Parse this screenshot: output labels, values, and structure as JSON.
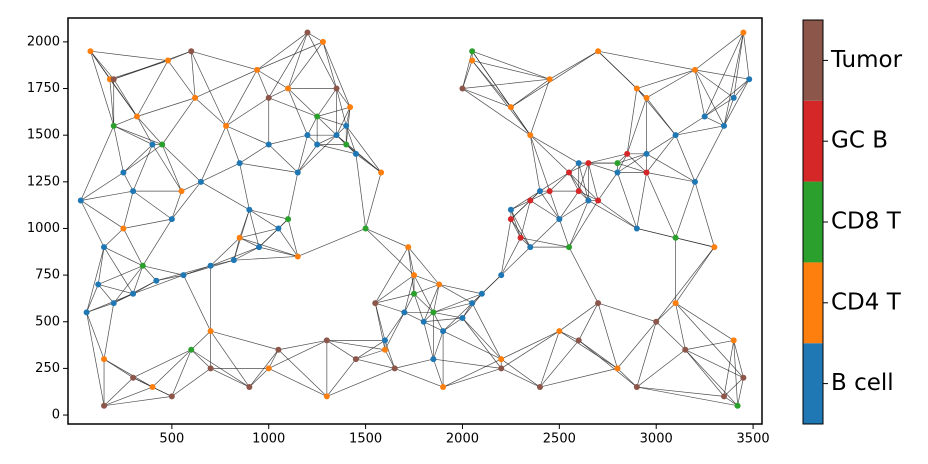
{
  "chart_data": {
    "type": "scatter",
    "xlim": [
      -36,
      3546
    ],
    "ylim": [
      -48,
      2128
    ],
    "xticks": [
      500,
      1000,
      1500,
      2000,
      2500,
      3000,
      3500
    ],
    "yticks": [
      0,
      250,
      500,
      750,
      1000,
      1250,
      1500,
      1750,
      2000
    ],
    "legend": "colorbar-right",
    "series": [
      {
        "name": "B cell",
        "color": "#1f77b4",
        "x": [
          30,
          120,
          200,
          300,
          420,
          560,
          700,
          820,
          950,
          1050,
          1150,
          1250,
          1350,
          1450,
          300,
          500,
          650,
          850,
          1000,
          1200,
          1400,
          60,
          150,
          250,
          400,
          1700,
          1800,
          1900,
          2000,
          2100,
          2200,
          2350,
          2500,
          2650,
          2800,
          2950,
          3100,
          3250,
          3400,
          3480,
          2400,
          2600,
          2900,
          3200,
          3350,
          1850,
          2050,
          2250,
          1600,
          900
        ],
        "values": [
          1150,
          700,
          600,
          650,
          720,
          750,
          800,
          830,
          900,
          1000,
          1300,
          1450,
          1500,
          1400,
          1200,
          1050,
          1250,
          1350,
          1450,
          1500,
          1550,
          550,
          900,
          1300,
          1450,
          550,
          500,
          450,
          520,
          650,
          750,
          900,
          1050,
          1150,
          1300,
          1400,
          1500,
          1600,
          1700,
          1800,
          1200,
          1350,
          1000,
          1250,
          1550,
          300,
          600,
          1100,
          400,
          1100
        ]
      },
      {
        "name": "CD4 T",
        "color": "#ff7f0e",
        "x": [
          80,
          180,
          320,
          480,
          620,
          780,
          940,
          1100,
          1280,
          1420,
          1580,
          1720,
          1880,
          2050,
          2250,
          2450,
          2700,
          2950,
          3200,
          3450,
          150,
          400,
          700,
          1000,
          1300,
          1600,
          1900,
          2200,
          2500,
          2800,
          3100,
          3400,
          250,
          550,
          850,
          1150,
          1750,
          2350,
          2900,
          3300
        ],
        "values": [
          1950,
          1800,
          1600,
          1900,
          1700,
          1550,
          1850,
          1750,
          2000,
          1650,
          1300,
          900,
          700,
          1900,
          1650,
          1800,
          1950,
          1700,
          1850,
          2050,
          300,
          150,
          450,
          250,
          100,
          350,
          150,
          300,
          450,
          250,
          600,
          400,
          1000,
          1200,
          950,
          850,
          750,
          1500,
          1750,
          900
        ]
      },
      {
        "name": "CD8 T",
        "color": "#2ca02c",
        "x": [
          200,
          450,
          1250,
          1400,
          1750,
          1850,
          2050,
          2550,
          2800,
          3100,
          3420,
          1100,
          350,
          600,
          1500
        ],
        "values": [
          1550,
          1450,
          1600,
          1450,
          650,
          550,
          1950,
          900,
          1350,
          950,
          50,
          1050,
          800,
          350,
          1000
        ]
      },
      {
        "name": "GC B",
        "color": "#d62728",
        "x": [
          2250,
          2300,
          2350,
          2450,
          2550,
          2600,
          2650,
          2700,
          2850,
          2950
        ],
        "values": [
          1050,
          950,
          1150,
          1200,
          1300,
          1200,
          1350,
          1150,
          1400,
          1300
        ]
      },
      {
        "name": "Tumor",
        "color": "#8c564b",
        "x": [
          150,
          300,
          500,
          700,
          900,
          1050,
          1300,
          1450,
          1550,
          1650,
          2200,
          2400,
          2600,
          2900,
          3150,
          3350,
          3450,
          2700,
          3000,
          200,
          600,
          1000,
          1350,
          1200,
          2000
        ],
        "values": [
          50,
          200,
          100,
          250,
          150,
          350,
          400,
          300,
          600,
          250,
          250,
          150,
          400,
          150,
          350,
          100,
          200,
          600,
          500,
          1800,
          1950,
          1700,
          1750,
          2050,
          1750
        ]
      }
    ]
  }
}
